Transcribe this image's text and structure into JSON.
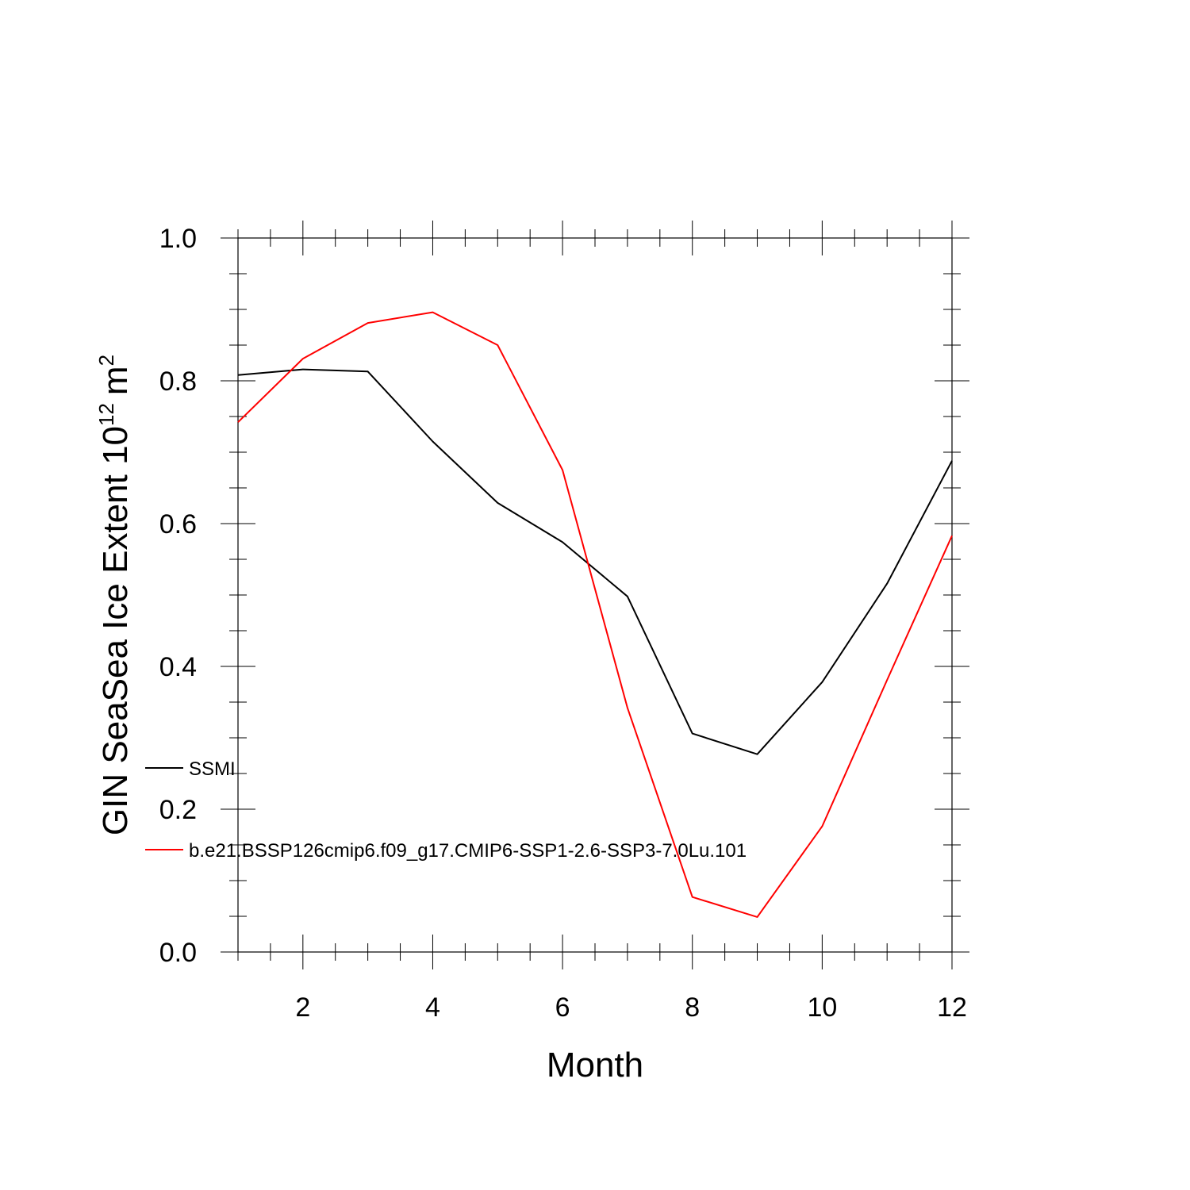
{
  "chart_data": {
    "type": "line",
    "title": "",
    "xlabel": "Month",
    "ylabel": {
      "main": "GIN SeaSea Ice Extent 10",
      "sup1": "12",
      "unit": "m",
      "sup2": "2"
    },
    "xlim": [
      1,
      12
    ],
    "ylim": [
      0.0,
      1.0
    ],
    "x": [
      1,
      2,
      3,
      4,
      5,
      6,
      7,
      8,
      9,
      10,
      11,
      12
    ],
    "x_ticks": [
      2,
      4,
      6,
      8,
      10,
      12
    ],
    "x_tick_labels": [
      "2",
      "4",
      "6",
      "8",
      "10",
      "12"
    ],
    "y_ticks": [
      0.0,
      0.2,
      0.4,
      0.6,
      0.8,
      1.0
    ],
    "y_tick_labels": [
      "0.0",
      "0.2",
      "0.4",
      "0.6",
      "0.8",
      "1.0"
    ],
    "grid": false,
    "legend_position": "lower-left-inside",
    "series": [
      {
        "name": "SSMI",
        "color": "#000000",
        "values": [
          0.808,
          0.816,
          0.813,
          0.715,
          0.629,
          0.574,
          0.498,
          0.306,
          0.277,
          0.378,
          0.516,
          0.688
        ]
      },
      {
        "name": "b.e21.BSSP126cmip6.f09_g17.CMIP6-SSP1-2.6-SSP3-7.0Lu.101",
        "color": "#ff0000",
        "values": [
          0.742,
          0.831,
          0.881,
          0.896,
          0.85,
          0.675,
          0.342,
          0.077,
          0.049,
          0.176,
          0.381,
          0.583
        ]
      }
    ]
  }
}
